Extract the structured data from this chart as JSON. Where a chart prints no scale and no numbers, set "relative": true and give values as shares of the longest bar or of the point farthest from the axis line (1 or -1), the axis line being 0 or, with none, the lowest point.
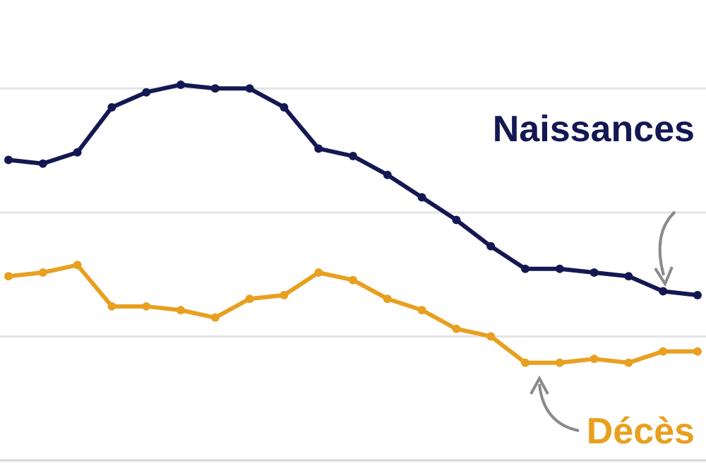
{
  "chart_data": {
    "type": "line",
    "relative": true,
    "marker": "circle",
    "line_style": "solid",
    "ref_lines": [
      {
        "axis": "y",
        "value": 0.33,
        "color": "#e4e4e4"
      },
      {
        "axis": "y",
        "value": 0.66,
        "color": "#e4e4e4"
      },
      {
        "axis": "y",
        "value": 0.99,
        "color": "#e4e4e4"
      }
    ],
    "categories": [
      null,
      null,
      null,
      null,
      null,
      null,
      null,
      null,
      null,
      null,
      null,
      null,
      null,
      null,
      null,
      null,
      null,
      null,
      null,
      null,
      null
    ],
    "series": [
      {
        "name": "Naissances",
        "color": "#141852",
        "values": [
          0.8,
          0.79,
          0.82,
          0.94,
          0.98,
          1,
          0.99,
          0.99,
          0.94,
          0.83,
          0.81,
          0.76,
          0.7,
          0.64,
          0.57,
          0.51,
          0.51,
          0.5,
          0.49,
          0.45,
          0.44
        ]
      },
      {
        "name": "Décès",
        "color": "#e8a020",
        "values": [
          0.49,
          0.5,
          0.52,
          0.41,
          0.41,
          0.4,
          0.38,
          0.43,
          0.44,
          0.5,
          0.48,
          0.43,
          0.4,
          0.35,
          0.33,
          0.26,
          0.26,
          0.27,
          0.26,
          0.29,
          0.29
        ]
      }
    ]
  }
}
